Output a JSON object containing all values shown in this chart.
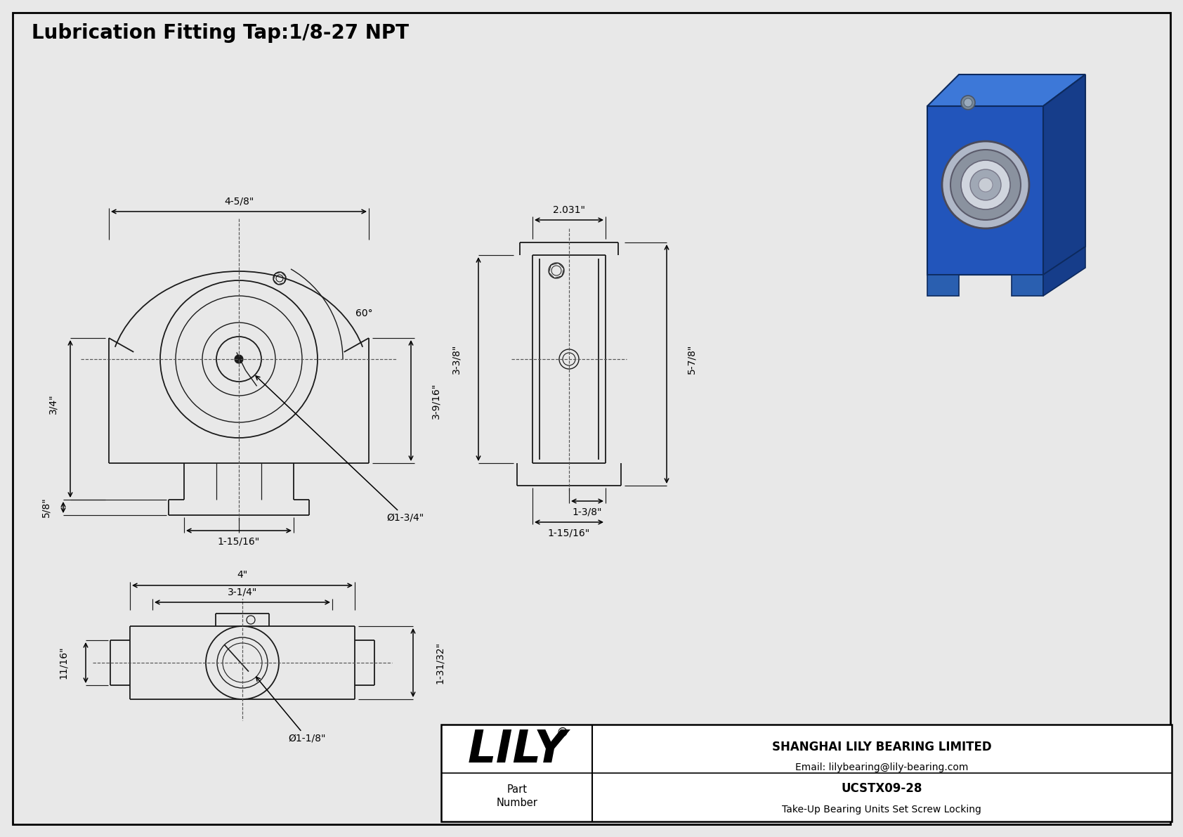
{
  "bg_color": "#e8e8e8",
  "line_color": "#1a1a1a",
  "title_text": "Lubrication Fitting Tap:1/8-27 NPT",
  "title_fontsize": 20,
  "dim_fontsize": 10,
  "company": "SHANGHAI LILY BEARING LIMITED",
  "email": "Email: lilybearing@lily-bearing.com",
  "part_number_label": "Part\nNumber",
  "part_number": "UCSTX09-28",
  "description": "Take-Up Bearing Units Set Screw Locking",
  "lily_text": "LILY",
  "registered": "®",
  "dims": {
    "front_width": "4-5/8\"",
    "front_height": "3-9/16\"",
    "shaft_dia": "Ø1-3/4\"",
    "slot_width": "1-15/16\"",
    "rail_height": "3/4\"",
    "foot_height": "5/8\"",
    "angle": "60°",
    "side_width": "2.031\"",
    "side_height": "3-3/8\"",
    "total_height": "5-7/8\"",
    "base_width1": "1-3/8\"",
    "base_width2": "1-15/16\"",
    "bottom_width": "4\"",
    "bottom_inner": "3-1/4\"",
    "bottom_dia": "Ø1-1/8\"",
    "bottom_height": "1-31/32\"",
    "bottom_foot": "11/16\""
  }
}
